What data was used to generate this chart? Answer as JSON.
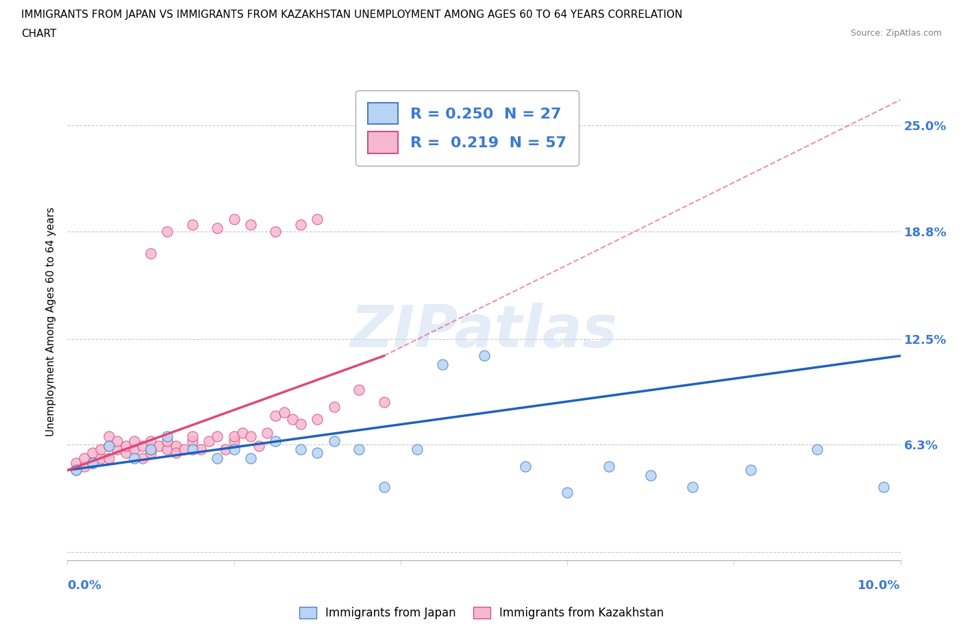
{
  "title_line1": "IMMIGRANTS FROM JAPAN VS IMMIGRANTS FROM KAZAKHSTAN UNEMPLOYMENT AMONG AGES 60 TO 64 YEARS CORRELATION",
  "title_line2": "CHART",
  "source": "Source: ZipAtlas.com",
  "ylabel": "Unemployment Among Ages 60 to 64 years",
  "ytick_values": [
    0.0,
    0.063,
    0.125,
    0.188,
    0.25
  ],
  "ytick_labels": [
    "",
    "6.3%",
    "12.5%",
    "18.8%",
    "25.0%"
  ],
  "xlim": [
    0.0,
    0.1
  ],
  "ylim": [
    -0.005,
    0.275
  ],
  "japan_color": "#b8d4f5",
  "kazakhstan_color": "#f5b8d0",
  "japan_edge_color": "#4a7fc1",
  "kazakhstan_edge_color": "#d45080",
  "japan_line_color": "#2060c0",
  "kazakhstan_line_color": "#e04878",
  "legend_japan_R": "0.250",
  "legend_japan_N": "27",
  "legend_kazakhstan_R": "0.219",
  "legend_kazakhstan_N": "57",
  "japan_x": [
    0.001,
    0.003,
    0.005,
    0.008,
    0.01,
    0.012,
    0.015,
    0.018,
    0.02,
    0.022,
    0.025,
    0.028,
    0.03,
    0.032,
    0.035,
    0.038,
    0.042,
    0.045,
    0.05,
    0.055,
    0.06,
    0.065,
    0.07,
    0.075,
    0.082,
    0.09,
    0.098
  ],
  "japan_y": [
    0.048,
    0.052,
    0.062,
    0.055,
    0.06,
    0.068,
    0.06,
    0.055,
    0.06,
    0.055,
    0.065,
    0.06,
    0.058,
    0.065,
    0.06,
    0.038,
    0.06,
    0.11,
    0.115,
    0.05,
    0.035,
    0.05,
    0.045,
    0.038,
    0.048,
    0.06,
    0.038
  ],
  "kaz_x": [
    0.001,
    0.001,
    0.002,
    0.002,
    0.003,
    0.003,
    0.004,
    0.004,
    0.005,
    0.005,
    0.005,
    0.006,
    0.006,
    0.007,
    0.007,
    0.008,
    0.008,
    0.009,
    0.009,
    0.01,
    0.01,
    0.01,
    0.011,
    0.012,
    0.012,
    0.013,
    0.013,
    0.014,
    0.015,
    0.015,
    0.016,
    0.017,
    0.018,
    0.019,
    0.02,
    0.02,
    0.021,
    0.022,
    0.023,
    0.024,
    0.025,
    0.026,
    0.027,
    0.028,
    0.03,
    0.032,
    0.035,
    0.038,
    0.01,
    0.012,
    0.015,
    0.018,
    0.02,
    0.022,
    0.025,
    0.028,
    0.03
  ],
  "kaz_y": [
    0.048,
    0.052,
    0.05,
    0.055,
    0.058,
    0.052,
    0.055,
    0.06,
    0.062,
    0.055,
    0.068,
    0.06,
    0.065,
    0.058,
    0.062,
    0.06,
    0.065,
    0.062,
    0.055,
    0.058,
    0.06,
    0.065,
    0.062,
    0.06,
    0.065,
    0.062,
    0.058,
    0.06,
    0.065,
    0.068,
    0.06,
    0.065,
    0.068,
    0.06,
    0.065,
    0.068,
    0.07,
    0.068,
    0.062,
    0.07,
    0.08,
    0.082,
    0.078,
    0.075,
    0.078,
    0.085,
    0.095,
    0.088,
    0.175,
    0.188,
    0.192,
    0.19,
    0.195,
    0.192,
    0.188,
    0.192,
    0.195
  ],
  "japan_trend_x0": 0.0,
  "japan_trend_x1": 0.1,
  "japan_trend_y0": 0.048,
  "japan_trend_y1": 0.115,
  "kaz_trend_x0": 0.0,
  "kaz_trend_x1": 0.038,
  "kaz_trend_y0": 0.048,
  "kaz_trend_y1": 0.115
}
